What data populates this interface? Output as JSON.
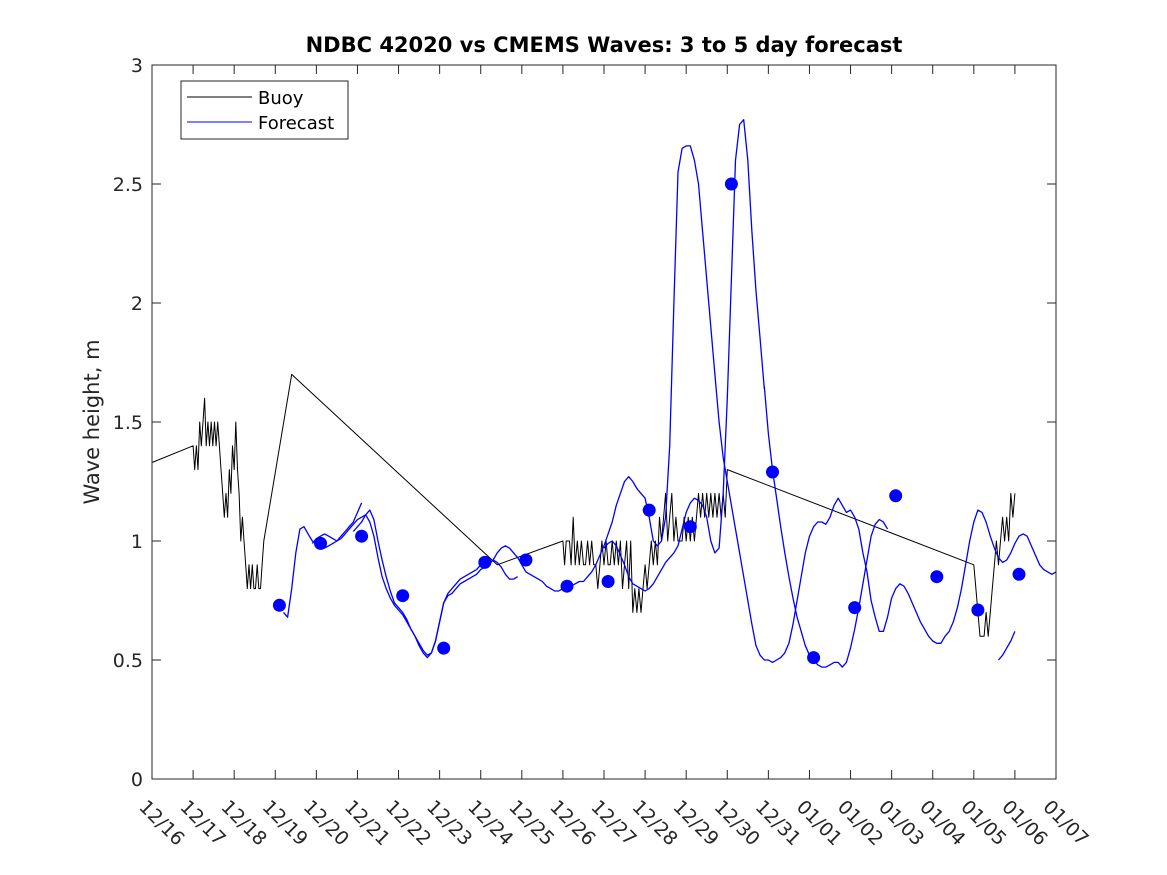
{
  "chart_data": {
    "type": "line",
    "title": "NDBC 42020 vs CMEMS Waves: 3 to 5 day forecast",
    "xlabel": "",
    "ylabel": "Wave height, m",
    "xlim": [
      0,
      22
    ],
    "ylim": [
      0,
      3
    ],
    "yticks": [
      0,
      0.5,
      1,
      1.5,
      2,
      2.5,
      3
    ],
    "ytick_labels": [
      "0",
      "0.5",
      "1",
      "1.5",
      "2",
      "2.5",
      "3"
    ],
    "xtick_labels": [
      "12/16",
      "12/17",
      "12/18",
      "12/19",
      "12/20",
      "12/21",
      "12/22",
      "12/23",
      "12/24",
      "12/25",
      "12/26",
      "12/27",
      "12/28",
      "12/29",
      "12/30",
      "12/31",
      "01/01",
      "01/02",
      "01/03",
      "01/04",
      "01/05",
      "01/06",
      "01/07"
    ],
    "legend": {
      "position": "top-left",
      "entries": [
        "Buoy",
        "Forecast"
      ]
    },
    "colors": {
      "buoy": "#000000",
      "forecast": "#0000ff",
      "axis": "#262626"
    },
    "series": [
      {
        "name": "Buoy",
        "x": [
          0,
          1.0,
          1.04,
          1.08,
          1.12,
          1.16,
          1.2,
          1.24,
          1.28,
          1.32,
          1.36,
          1.4,
          1.44,
          1.48,
          1.52,
          1.56,
          1.6,
          1.64,
          1.68,
          1.72,
          1.76,
          1.8,
          1.84,
          1.88,
          1.92,
          1.96,
          2.0,
          2.04,
          2.08,
          2.12,
          2.16,
          2.2,
          2.24,
          2.28,
          2.32,
          2.36,
          2.4,
          2.44,
          2.48,
          2.52,
          2.56,
          2.6,
          2.64,
          2.68,
          2.72,
          3.4,
          8.4,
          10.0,
          10.04,
          10.08,
          10.12,
          10.16,
          10.2,
          10.25,
          10.3,
          10.35,
          10.4,
          10.45,
          10.5,
          10.55,
          10.6,
          10.65,
          10.7,
          10.75,
          10.8,
          10.85,
          10.9,
          10.95,
          11.0,
          11.05,
          11.1,
          11.15,
          11.2,
          11.25,
          11.3,
          11.35,
          11.4,
          11.45,
          11.5,
          11.55,
          11.6,
          11.65,
          11.7,
          11.75,
          11.8,
          11.85,
          11.9,
          11.95,
          12.0,
          12.05,
          12.1,
          12.15,
          12.2,
          12.25,
          12.3,
          12.35,
          12.4,
          12.45,
          12.5,
          12.55,
          12.6,
          12.65,
          12.7,
          12.75,
          12.8,
          12.85,
          12.9,
          12.95,
          13.0,
          13.05,
          13.1,
          13.15,
          13.2,
          13.25,
          13.3,
          13.35,
          13.4,
          13.45,
          13.5,
          13.55,
          13.6,
          13.65,
          13.7,
          13.75,
          13.8,
          13.85,
          13.9,
          13.95,
          14.0,
          20.0,
          20.05,
          20.1,
          20.15,
          20.2,
          20.25,
          20.3,
          20.35,
          20.4,
          20.45,
          20.5,
          20.55,
          20.6,
          20.65,
          20.7,
          20.75,
          20.8,
          20.85,
          20.9,
          20.95,
          21.0
        ],
        "y": [
          1.33,
          1.4,
          1.3,
          1.4,
          1.3,
          1.5,
          1.4,
          1.5,
          1.6,
          1.4,
          1.5,
          1.4,
          1.5,
          1.4,
          1.5,
          1.4,
          1.5,
          1.4,
          1.3,
          1.2,
          1.1,
          1.2,
          1.1,
          1.3,
          1.2,
          1.4,
          1.3,
          1.5,
          1.3,
          1.2,
          1.0,
          1.1,
          1.0,
          0.9,
          0.8,
          0.9,
          0.8,
          0.9,
          0.8,
          0.8,
          0.9,
          0.8,
          0.8,
          0.9,
          1.0,
          1.7,
          0.9,
          1.0,
          0.9,
          1.0,
          1.0,
          1.0,
          0.9,
          1.1,
          0.9,
          1.0,
          0.9,
          1.0,
          0.9,
          0.9,
          1.0,
          0.9,
          1.0,
          0.9,
          0.9,
          0.8,
          0.9,
          1.0,
          0.9,
          1.0,
          0.9,
          0.9,
          1.0,
          0.9,
          1.0,
          0.9,
          1.0,
          0.8,
          0.9,
          1.0,
          0.8,
          1.0,
          0.7,
          0.8,
          0.7,
          0.8,
          0.7,
          0.8,
          0.9,
          0.8,
          0.9,
          1.0,
          0.9,
          1.0,
          0.9,
          1.1,
          1.0,
          1.1,
          1.2,
          1.0,
          1.1,
          1.2,
          1.0,
          1.1,
          1.0,
          1.0,
          1.0,
          1.1,
          1.0,
          1.1,
          1.0,
          1.1,
          1.0,
          1.1,
          1.2,
          1.1,
          1.2,
          1.1,
          1.2,
          1.1,
          1.2,
          1.1,
          1.2,
          1.1,
          1.2,
          1.1,
          1.2,
          1.1,
          1.3,
          0.9,
          0.8,
          0.7,
          0.6,
          0.6,
          0.6,
          0.7,
          0.6,
          0.7,
          0.8,
          0.9,
          1.0,
          0.9,
          1.0,
          1.1,
          1.0,
          1.1,
          1.0,
          1.2,
          1.1,
          1.2
        ]
      },
      {
        "name": "Forecast",
        "segments": [
          {
            "x": [
              3.2,
              3.3,
              3.4,
              3.5,
              3.6,
              3.7,
              3.8,
              3.9,
              4.0,
              4.1,
              4.2,
              4.3,
              4.4,
              4.5,
              4.6,
              4.7,
              4.8,
              4.9,
              5.0,
              5.1
            ],
            "y": [
              0.7,
              0.68,
              0.8,
              0.95,
              1.05,
              1.06,
              1.03,
              1.0,
              0.99,
              0.98,
              0.97,
              0.98,
              0.99,
              1.0,
              1.02,
              1.04,
              1.06,
              1.08,
              1.12,
              1.16
            ]
          },
          {
            "x": [
              3.9,
              4.0,
              4.1,
              4.2,
              4.3,
              4.4,
              4.5,
              4.6,
              4.7,
              4.8,
              4.9,
              5.0,
              5.1,
              5.2,
              5.3,
              5.4,
              5.5,
              5.6,
              5.7,
              5.8,
              5.9,
              6.0,
              6.1,
              6.2,
              6.3,
              6.4,
              6.5,
              6.6,
              6.7,
              6.8,
              6.9,
              7.0,
              7.1,
              7.2,
              7.3,
              7.4,
              7.5,
              7.6,
              7.7,
              7.8,
              7.9,
              8.0,
              8.1,
              8.2,
              8.3,
              8.4,
              8.5,
              8.6,
              8.7,
              8.8,
              8.9,
              9.0,
              9.1,
              9.2,
              9.3,
              9.4,
              9.5,
              9.6,
              9.7,
              9.8,
              9.9,
              10.0,
              10.1,
              10.2,
              10.3,
              10.4,
              10.5,
              10.6,
              10.7,
              10.8,
              10.9,
              11.0,
              11.1,
              11.2,
              11.3,
              11.4,
              11.5,
              11.6,
              11.7,
              11.8,
              11.9,
              12.0,
              12.1,
              12.2,
              12.3,
              12.4,
              12.5,
              12.6,
              12.7,
              12.8,
              12.9,
              13.0,
              13.1,
              13.2,
              13.3,
              13.4,
              13.5,
              13.6,
              13.7,
              13.8,
              13.9,
              14.0,
              14.1,
              14.2,
              14.3,
              14.4,
              14.5,
              14.6,
              14.7,
              14.8,
              14.9,
              15.0,
              15.1,
              15.2,
              15.3,
              15.4,
              15.5,
              15.6,
              15.7,
              15.8,
              15.9,
              16.0,
              16.1,
              16.2,
              16.3,
              16.4,
              16.5,
              16.6,
              16.7,
              16.8,
              16.9,
              17.0,
              17.1,
              17.2,
              17.3,
              17.4,
              17.5,
              17.6,
              17.7,
              17.8,
              17.9,
              18.0,
              18.1,
              18.2,
              18.3,
              18.4,
              18.5,
              18.6,
              18.7,
              18.8,
              18.9,
              19.0,
              19.1,
              19.2,
              19.3,
              19.4,
              19.5,
              19.6,
              19.7,
              19.8,
              19.9,
              20.0,
              20.1,
              20.2,
              20.3,
              20.4,
              20.5,
              20.6,
              20.7,
              20.8,
              20.9,
              21.0,
              21.1,
              21.2,
              21.3,
              21.4,
              21.5,
              21.6,
              21.7,
              21.8,
              21.9,
              22.0
            ],
            "y": [
              0.99,
              1.01,
              1.02,
              1.03,
              1.02,
              1.01,
              1.0,
              1.01,
              1.03,
              1.05,
              1.07,
              1.09,
              1.1,
              1.11,
              1.08,
              1.02,
              0.93,
              0.85,
              0.8,
              0.76,
              0.73,
              0.71,
              0.69,
              0.66,
              0.63,
              0.6,
              0.57,
              0.54,
              0.52,
              0.53,
              0.58,
              0.66,
              0.74,
              0.77,
              0.78,
              0.8,
              0.82,
              0.83,
              0.84,
              0.85,
              0.86,
              0.88,
              0.89,
              0.9,
              0.92,
              0.95,
              0.97,
              0.98,
              0.97,
              0.95,
              0.93,
              0.9,
              0.87,
              0.86,
              0.85,
              0.84,
              0.83,
              0.81,
              0.8,
              0.79,
              0.79,
              0.8,
              0.8,
              0.81,
              0.82,
              0.83,
              0.83,
              0.85,
              0.87,
              0.9,
              0.94,
              0.98,
              1.03,
              1.08,
              1.15,
              1.2,
              1.25,
              1.27,
              1.25,
              1.22,
              1.2,
              1.18,
              1.1,
              1.0,
              0.98,
              1.0,
              1.1,
              1.4,
              2.0,
              2.55,
              2.65,
              2.66,
              2.66,
              2.6,
              2.5,
              2.3,
              2.1,
              1.9,
              1.7,
              1.5,
              1.35,
              1.25,
              1.15,
              1.05,
              0.95,
              0.85,
              0.75,
              0.65,
              0.56,
              0.52,
              0.5,
              0.5,
              0.49,
              0.5,
              0.51,
              0.53,
              0.57,
              0.65,
              0.75,
              0.85,
              0.95,
              1.02,
              1.06,
              1.08,
              1.08,
              1.07,
              1.1,
              1.15,
              1.18,
              1.15,
              1.12,
              1.13,
              1.1,
              1.05,
              0.95,
              0.87,
              0.75,
              0.68,
              0.62,
              0.62,
              0.68,
              0.76,
              0.8,
              0.82,
              0.81,
              0.78,
              0.74,
              0.7,
              0.66,
              0.63,
              0.6,
              0.58,
              0.57,
              0.57,
              0.6,
              0.62,
              0.66,
              0.72,
              0.8,
              0.9,
              1.0,
              1.08,
              1.13,
              1.12,
              1.08,
              1.02,
              0.97,
              0.93,
              0.91,
              0.92,
              0.95,
              0.99,
              1.02,
              1.03,
              1.02,
              0.98,
              0.94,
              0.9,
              0.88,
              0.87,
              0.86,
              0.87
            ]
          },
          {
            "x": [
              4.9,
              5.0,
              5.1,
              5.2,
              5.3,
              5.4,
              5.5,
              5.6,
              5.7,
              5.8,
              5.9,
              6.0,
              6.1,
              6.2,
              6.3,
              6.4,
              6.5,
              6.6,
              6.7,
              6.8,
              6.9,
              7.0,
              7.1,
              7.2,
              7.3,
              7.4,
              7.5,
              7.6,
              7.7,
              7.8,
              7.9,
              8.0,
              8.1,
              8.2,
              8.3,
              8.4,
              8.5,
              8.6,
              8.7,
              8.8,
              8.9
            ],
            "y": [
              1.04,
              1.06,
              1.08,
              1.11,
              1.13,
              1.09,
              1.0,
              0.92,
              0.85,
              0.79,
              0.74,
              0.72,
              0.7,
              0.67,
              0.63,
              0.6,
              0.56,
              0.53,
              0.51,
              0.53,
              0.58,
              0.66,
              0.74,
              0.78,
              0.8,
              0.82,
              0.84,
              0.85,
              0.86,
              0.87,
              0.88,
              0.9,
              0.91,
              0.91,
              0.92,
              0.91,
              0.89,
              0.86,
              0.84,
              0.84,
              0.85
            ]
          },
          {
            "x": [
              11.0,
              11.1,
              11.2,
              11.3,
              11.4,
              11.5,
              11.6,
              11.7,
              11.8,
              11.9,
              12.0,
              12.1,
              12.2,
              12.3,
              12.4,
              12.5,
              12.6,
              12.7,
              12.8,
              12.9,
              13.0,
              13.1,
              13.2,
              13.3,
              13.4,
              13.5,
              13.6,
              13.7,
              13.8,
              13.9,
              14.0,
              14.1,
              14.2,
              14.3,
              14.4,
              14.5,
              14.6,
              14.7,
              14.8,
              14.9
            ],
            "y": [
              0.97,
              0.99,
              1.0,
              0.98,
              0.94,
              0.9,
              0.85,
              0.82,
              0.81,
              0.8,
              0.79,
              0.8,
              0.82,
              0.85,
              0.88,
              0.91,
              0.93,
              0.95,
              0.98,
              1.05,
              1.12,
              1.16,
              1.18,
              1.17,
              1.15,
              1.1,
              1.0,
              0.95,
              0.97,
              1.2,
              1.6,
              2.1,
              2.6,
              2.75,
              2.77,
              2.6,
              2.3,
              2.05,
              1.85,
              1.64
            ]
          },
          {
            "x": [
              14.9,
              15.0,
              15.1,
              15.2,
              15.3,
              15.4,
              15.5,
              15.6,
              15.7,
              15.8,
              15.9,
              16.0,
              16.1,
              16.2,
              16.3,
              16.4,
              16.5,
              16.6,
              16.7,
              16.8,
              16.9,
              17.0,
              17.1,
              17.2,
              17.3,
              17.4,
              17.5,
              17.6,
              17.7,
              17.8,
              17.9
            ],
            "y": [
              1.65,
              1.45,
              1.3,
              1.18,
              1.06,
              0.95,
              0.85,
              0.76,
              0.68,
              0.62,
              0.56,
              0.52,
              0.5,
              0.48,
              0.47,
              0.47,
              0.48,
              0.49,
              0.49,
              0.47,
              0.49,
              0.55,
              0.63,
              0.72,
              0.82,
              0.92,
              1.02,
              1.07,
              1.09,
              1.08,
              1.05
            ]
          },
          {
            "x": [
              20.6,
              20.7,
              20.8,
              20.9,
              21.0
            ],
            "y": [
              0.5,
              0.52,
              0.55,
              0.58,
              0.62
            ]
          }
        ],
        "markers": {
          "x": [
            3.1,
            4.1,
            5.1,
            6.1,
            7.1,
            8.1,
            9.1,
            10.1,
            11.1,
            12.1,
            13.1,
            14.1,
            15.1,
            16.1,
            17.1,
            18.1,
            19.1,
            20.1,
            21.1
          ],
          "y": [
            0.73,
            0.99,
            1.02,
            0.77,
            0.55,
            0.91,
            0.92,
            0.81,
            0.83,
            1.13,
            1.06,
            2.5,
            1.29,
            0.51,
            0.72,
            1.19,
            0.85,
            0.71,
            0.86
          ]
        }
      }
    ]
  }
}
